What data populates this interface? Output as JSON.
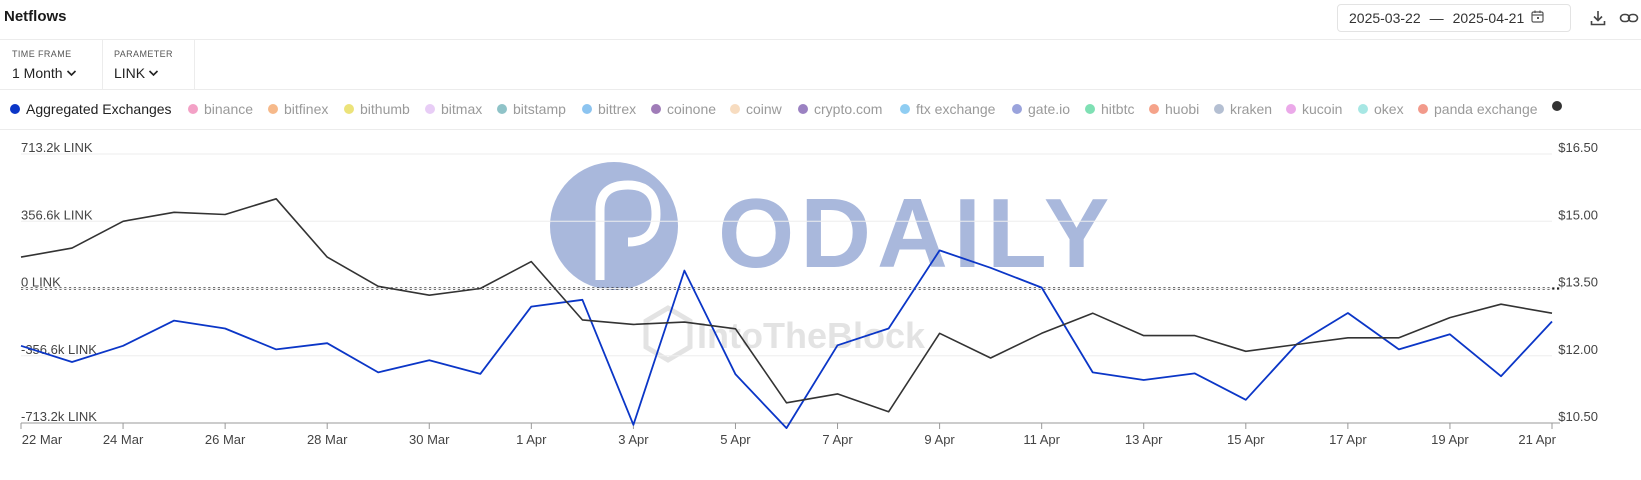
{
  "header": {
    "title": "Netflows",
    "date_from": "2025-03-22",
    "date_sep": "—",
    "date_to": "2025-04-21",
    "icons": [
      "calendar-icon",
      "download-icon",
      "link-icon"
    ]
  },
  "controls": {
    "time_frame_label": "TIME FRAME",
    "time_frame_value": "1 Month",
    "parameter_label": "PARAMETER",
    "parameter_value": "LINK"
  },
  "legend": [
    {
      "name": "Aggregated Exchanges",
      "color": "#0b36c7",
      "active": true
    },
    {
      "name": "binance",
      "color": "#f3a1c6"
    },
    {
      "name": "bitfinex",
      "color": "#f6b98a"
    },
    {
      "name": "bithumb",
      "color": "#ece37a"
    },
    {
      "name": "bitmax",
      "color": "#e8cdf6"
    },
    {
      "name": "bitstamp",
      "color": "#8fc3c8"
    },
    {
      "name": "bittrex",
      "color": "#8cc4f0"
    },
    {
      "name": "coinone",
      "color": "#a07cb8"
    },
    {
      "name": "coinw",
      "color": "#f7dcc0"
    },
    {
      "name": "crypto.com",
      "color": "#9b82c2"
    },
    {
      "name": "ftx exchange",
      "color": "#8fcdf2"
    },
    {
      "name": "gate.io",
      "color": "#9aa3dc"
    },
    {
      "name": "hitbtc",
      "color": "#7fe0b4"
    },
    {
      "name": "huobi",
      "color": "#f5a38a"
    },
    {
      "name": "kraken",
      "color": "#b4bfd2"
    },
    {
      "name": "kucoin",
      "color": "#eba9e9"
    },
    {
      "name": "okex",
      "color": "#a7e7e4"
    },
    {
      "name": "panda exchange",
      "color": "#f29a8b"
    },
    {
      "name": "",
      "color": "#333333"
    }
  ],
  "watermarks": {
    "primary": "ODAILY",
    "secondary": "IntoTheBlock"
  },
  "chart_data": {
    "type": "line",
    "x": [
      "22 Mar",
      "23 Mar",
      "24 Mar",
      "25 Mar",
      "26 Mar",
      "27 Mar",
      "28 Mar",
      "29 Mar",
      "30 Mar",
      "31 Mar",
      "1 Apr",
      "2 Apr",
      "3 Apr",
      "4 Apr",
      "5 Apr",
      "6 Apr",
      "7 Apr",
      "8 Apr",
      "9 Apr",
      "10 Apr",
      "11 Apr",
      "12 Apr",
      "13 Apr",
      "14 Apr",
      "15 Apr",
      "16 Apr",
      "17 Apr",
      "18 Apr",
      "19 Apr",
      "20 Apr",
      "21 Apr"
    ],
    "x_tick_labels": [
      "22 Mar",
      "24 Mar",
      "26 Mar",
      "28 Mar",
      "30 Mar",
      "1 Apr",
      "3 Apr",
      "5 Apr",
      "7 Apr",
      "9 Apr",
      "11 Apr",
      "13 Apr",
      "15 Apr",
      "17 Apr",
      "19 Apr",
      "21 Apr"
    ],
    "y_left": {
      "ticks": [
        713.2,
        356.6,
        0,
        -356.6,
        -713.2
      ],
      "tick_labels": [
        "713.2k LINK",
        "356.6k LINK",
        "0 LINK",
        "-356.6k LINK",
        "-713.2k LINK"
      ],
      "range": [
        -713.2,
        713.2
      ],
      "unit": "k LINK"
    },
    "y_right": {
      "ticks": [
        16.5,
        15.0,
        13.5,
        12.0,
        10.5
      ],
      "tick_labels": [
        "$16.50",
        "$15.00",
        "$13.50",
        "$12.00",
        "$10.50"
      ],
      "range": [
        10.5,
        16.5
      ],
      "unit": "$"
    },
    "grid": true,
    "zero_line_dotted": true,
    "series": [
      {
        "name": "Aggregated Exchanges",
        "axis": "left",
        "color": "#0b36c7",
        "values": [
          -304,
          -390,
          -304,
          -170,
          -212,
          -323,
          -290,
          -445,
          -380,
          -453,
          -96,
          -60,
          -723,
          95,
          -455,
          -740,
          -301,
          -212,
          202,
          110,
          5,
          -445,
          -485,
          -450,
          -590,
          -295,
          -130,
          -323,
          -243,
          -465,
          -175
        ]
      },
      {
        "name": "",
        "axis": "right",
        "color": "#333333",
        "values": [
          14.2,
          14.4,
          15.0,
          15.2,
          15.15,
          15.5,
          14.2,
          13.55,
          13.35,
          13.5,
          14.1,
          12.8,
          12.7,
          12.75,
          12.6,
          10.95,
          11.15,
          10.75,
          12.5,
          11.95,
          12.5,
          12.95,
          12.45,
          12.45,
          12.1,
          12.25,
          12.4,
          12.4,
          12.85,
          13.15,
          12.95
        ]
      }
    ]
  }
}
